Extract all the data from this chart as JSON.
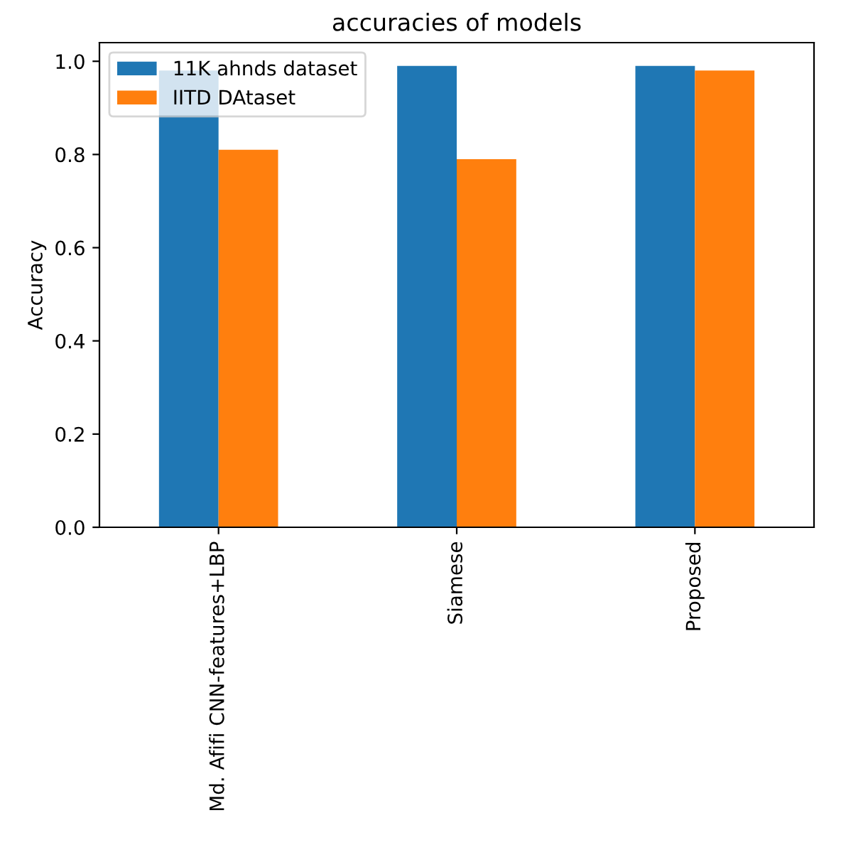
{
  "chart_data": {
    "type": "bar",
    "title": "accuracies of models",
    "ylabel": "Accuracy",
    "categories": [
      "Md. Afifi CNN-features+LBP",
      "Siamese",
      "Proposed"
    ],
    "series": [
      {
        "name": "11K ahnds dataset",
        "color": "#1f77b4",
        "values": [
          0.98,
          0.99,
          0.99
        ]
      },
      {
        "name": "IITD DAtaset",
        "color": "#ff7f0e",
        "values": [
          0.81,
          0.79,
          0.98
        ]
      }
    ],
    "ylim": [
      0,
      1.04
    ],
    "yticks": [
      {
        "value": 0,
        "label": "0.0"
      },
      0.2,
      0.4,
      0.6,
      0.8,
      {
        "value": 1,
        "label": "1.0"
      }
    ],
    "legend": "upper left",
    "grid": false
  }
}
